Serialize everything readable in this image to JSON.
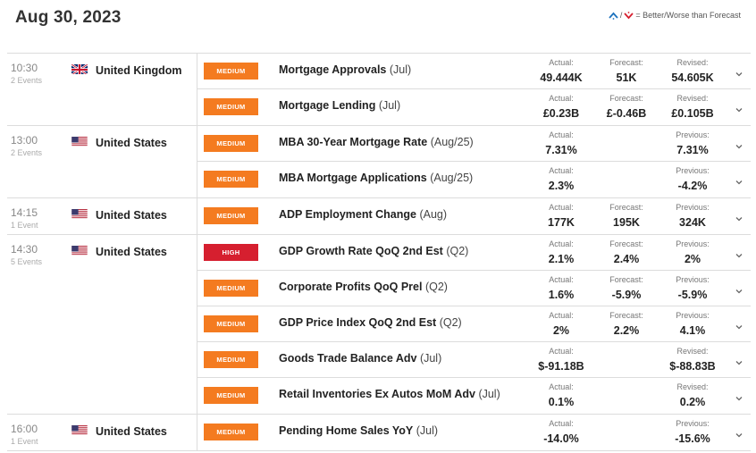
{
  "header": {
    "date": "Aug 30, 2023",
    "legend_text": "= Better/Worse than Forecast",
    "legend_separator": "/"
  },
  "colors": {
    "medium": "#f47b20",
    "high": "#d61f2f",
    "better": "#1e73be",
    "worse": "#d61f2f"
  },
  "groups": [
    {
      "time": "10:30",
      "count": "2 Events",
      "country": "United Kingdom",
      "flag": "gb-flag-icon",
      "events": [
        {
          "impact": "MEDIUM",
          "level": "medium",
          "name": "Mortgage Approvals",
          "period": "(Jul)",
          "actual_label": "Actual:",
          "actual": "49.444K",
          "forecast_label": "Forecast:",
          "forecast": "51K",
          "prev_label": "Revised:",
          "prev": "54.605K"
        },
        {
          "impact": "MEDIUM",
          "level": "medium",
          "name": "Mortgage Lending",
          "period": "(Jul)",
          "actual_label": "Actual:",
          "actual": "£0.23B",
          "forecast_label": "Forecast:",
          "forecast": "£-0.46B",
          "prev_label": "Revised:",
          "prev": "£0.105B"
        }
      ]
    },
    {
      "time": "13:00",
      "count": "2 Events",
      "country": "United States",
      "flag": "us-flag-icon",
      "events": [
        {
          "impact": "MEDIUM",
          "level": "medium",
          "name": "MBA 30-Year Mortgage Rate",
          "period": "(Aug/25)",
          "actual_label": "Actual:",
          "actual": "7.31%",
          "forecast_label": "",
          "forecast": "",
          "prev_label": "Previous:",
          "prev": "7.31%"
        },
        {
          "impact": "MEDIUM",
          "level": "medium",
          "name": "MBA Mortgage Applications",
          "period": "(Aug/25)",
          "actual_label": "Actual:",
          "actual": "2.3%",
          "forecast_label": "",
          "forecast": "",
          "prev_label": "Previous:",
          "prev": "-4.2%"
        }
      ]
    },
    {
      "time": "14:15",
      "count": "1 Event",
      "country": "United States",
      "flag": "us-flag-icon",
      "events": [
        {
          "impact": "MEDIUM",
          "level": "medium",
          "name": "ADP Employment Change",
          "period": "(Aug)",
          "actual_label": "Actual:",
          "actual": "177K",
          "forecast_label": "Forecast:",
          "forecast": "195K",
          "prev_label": "Previous:",
          "prev": "324K"
        }
      ]
    },
    {
      "time": "14:30",
      "count": "5 Events",
      "country": "United States",
      "flag": "us-flag-icon",
      "events": [
        {
          "impact": "HIGH",
          "level": "high",
          "name": "GDP Growth Rate QoQ 2nd Est",
          "period": "(Q2)",
          "actual_label": "Actual:",
          "actual": "2.1%",
          "forecast_label": "Forecast:",
          "forecast": "2.4%",
          "prev_label": "Previous:",
          "prev": "2%"
        },
        {
          "impact": "MEDIUM",
          "level": "medium",
          "name": "Corporate Profits QoQ Prel",
          "period": "(Q2)",
          "actual_label": "Actual:",
          "actual": "1.6%",
          "forecast_label": "Forecast:",
          "forecast": "-5.9%",
          "prev_label": "Previous:",
          "prev": "-5.9%"
        },
        {
          "impact": "MEDIUM",
          "level": "medium",
          "name": "GDP Price Index QoQ 2nd Est",
          "period": "(Q2)",
          "actual_label": "Actual:",
          "actual": "2%",
          "forecast_label": "Forecast:",
          "forecast": "2.2%",
          "prev_label": "Previous:",
          "prev": "4.1%"
        },
        {
          "impact": "MEDIUM",
          "level": "medium",
          "name": "Goods Trade Balance Adv",
          "period": "(Jul)",
          "actual_label": "Actual:",
          "actual": "$-91.18B",
          "forecast_label": "",
          "forecast": "",
          "prev_label": "Revised:",
          "prev": "$-88.83B"
        },
        {
          "impact": "MEDIUM",
          "level": "medium",
          "name": "Retail Inventories Ex Autos MoM Adv",
          "period": "(Jul)",
          "actual_label": "Actual:",
          "actual": "0.1%",
          "forecast_label": "",
          "forecast": "",
          "prev_label": "Revised:",
          "prev": "0.2%"
        }
      ]
    },
    {
      "time": "16:00",
      "count": "1 Event",
      "country": "United States",
      "flag": "us-flag-icon",
      "events": [
        {
          "impact": "MEDIUM",
          "level": "medium",
          "name": "Pending Home Sales YoY",
          "period": "(Jul)",
          "actual_label": "Actual:",
          "actual": "-14.0%",
          "forecast_label": "",
          "forecast": "",
          "prev_label": "Previous:",
          "prev": "-15.6%"
        }
      ]
    }
  ]
}
